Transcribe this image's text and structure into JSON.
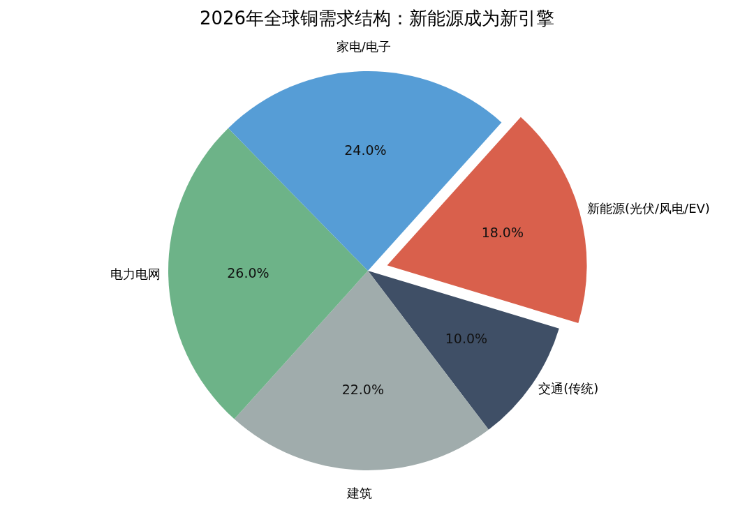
{
  "chart_data": {
    "type": "pie",
    "title": "2026年全球铜需求结构：新能源成为新引擎",
    "categories": [
      "新能源(光伏/风电/EV)",
      "家电/电子",
      "电力电网",
      "建筑",
      "交通(传统)"
    ],
    "values": [
      18,
      24,
      26,
      22,
      10
    ],
    "colors": [
      "#d9604c",
      "#569dd6",
      "#6db388",
      "#a0acac",
      "#3f4f66"
    ],
    "value_labels": [
      "18.0%",
      "24.0%",
      "26.0%",
      "22.0%",
      "10.0%"
    ]
  }
}
